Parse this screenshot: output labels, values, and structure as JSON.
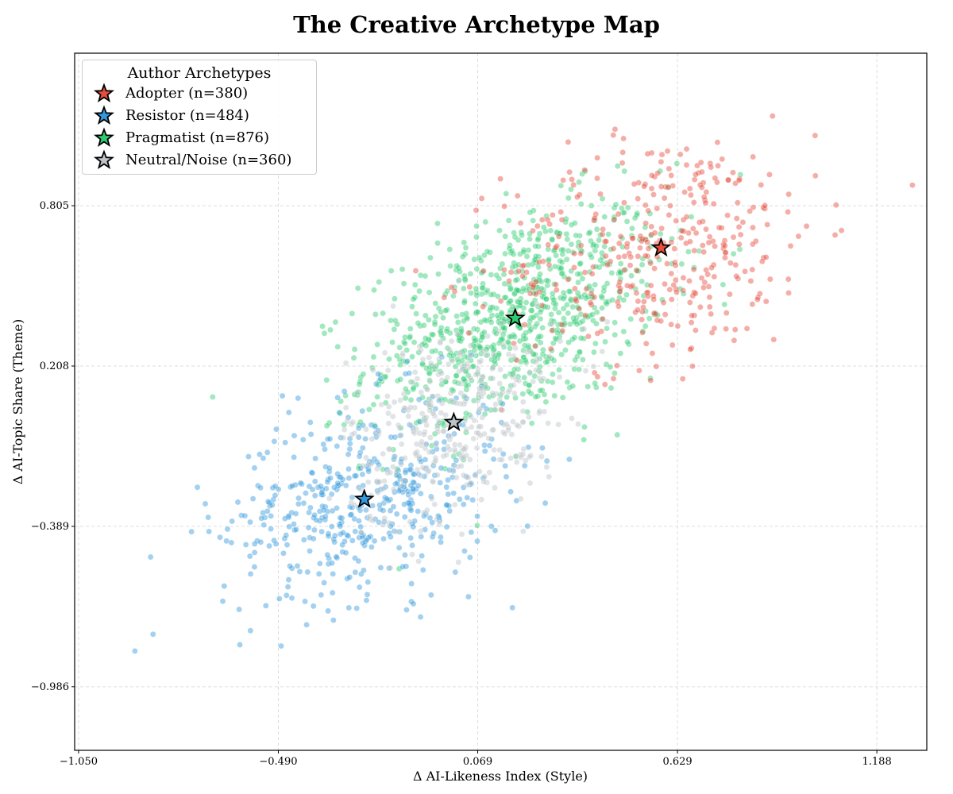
{
  "chart_data": {
    "type": "scatter",
    "title": "The Creative Archetype Map",
    "xlabel": "Δ AI-Likeness Index (Style)",
    "ylabel": "Δ AI-Topic Share (Theme)",
    "xlim": [
      -1.061,
      1.328
    ],
    "ylim": [
      -1.223,
      1.373
    ],
    "xticks": [
      "-1.050",
      "-0.490",
      "0.069",
      "0.629",
      "1.188"
    ],
    "yticks": [
      "0.805",
      "0.208",
      "-0.389",
      "-0.986"
    ],
    "grid": true,
    "legend": {
      "title": "Author Archetypes",
      "placement": "top-left"
    },
    "series": [
      {
        "name": "Adopter (n=380)",
        "n": 380,
        "color": "#e74c3c",
        "centroid": [
          0.583,
          0.648
        ]
      },
      {
        "name": "Resistor (n=484)",
        "n": 484,
        "color": "#3498db",
        "centroid": [
          -0.249,
          -0.288
        ]
      },
      {
        "name": "Pragmatist (n=876)",
        "n": 876,
        "color": "#2ecc71",
        "centroid": [
          0.174,
          0.386
        ]
      },
      {
        "name": "Neutral/Noise (n=360)",
        "n": 360,
        "color": "#bdc3c7",
        "centroid": [
          0.002,
          -0.002
        ]
      }
    ]
  }
}
